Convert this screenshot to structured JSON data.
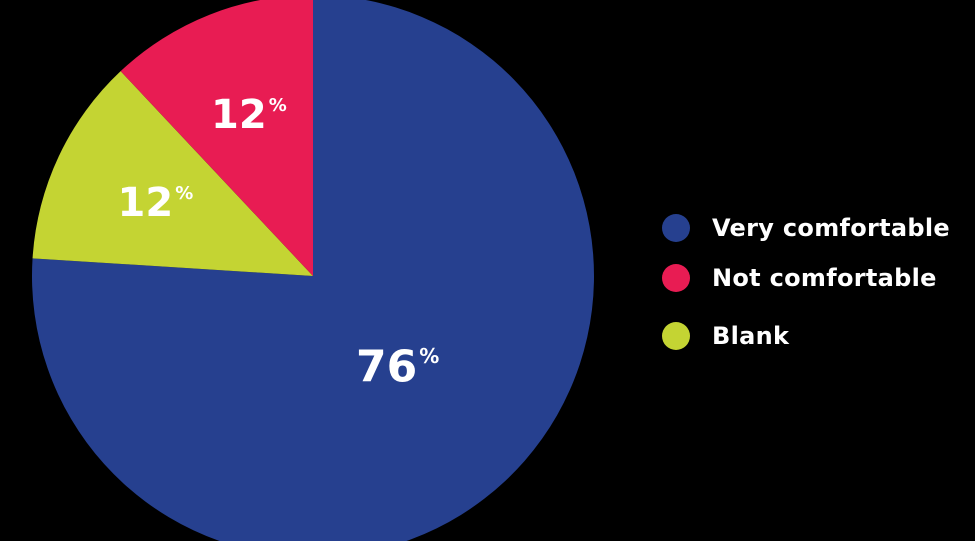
{
  "chart_data": {
    "type": "pie",
    "slices": [
      {
        "label": "Very comfortable",
        "value": 76,
        "display": "76",
        "color": "#26408f"
      },
      {
        "label": "Not comfortable",
        "value": 12,
        "display": "12",
        "color": "#e81c53"
      },
      {
        "label": "Blank",
        "value": 12,
        "display": "12",
        "color": "#c4d433"
      }
    ],
    "value_suffix": "%",
    "legend_placement": "right",
    "background": "#000000"
  }
}
